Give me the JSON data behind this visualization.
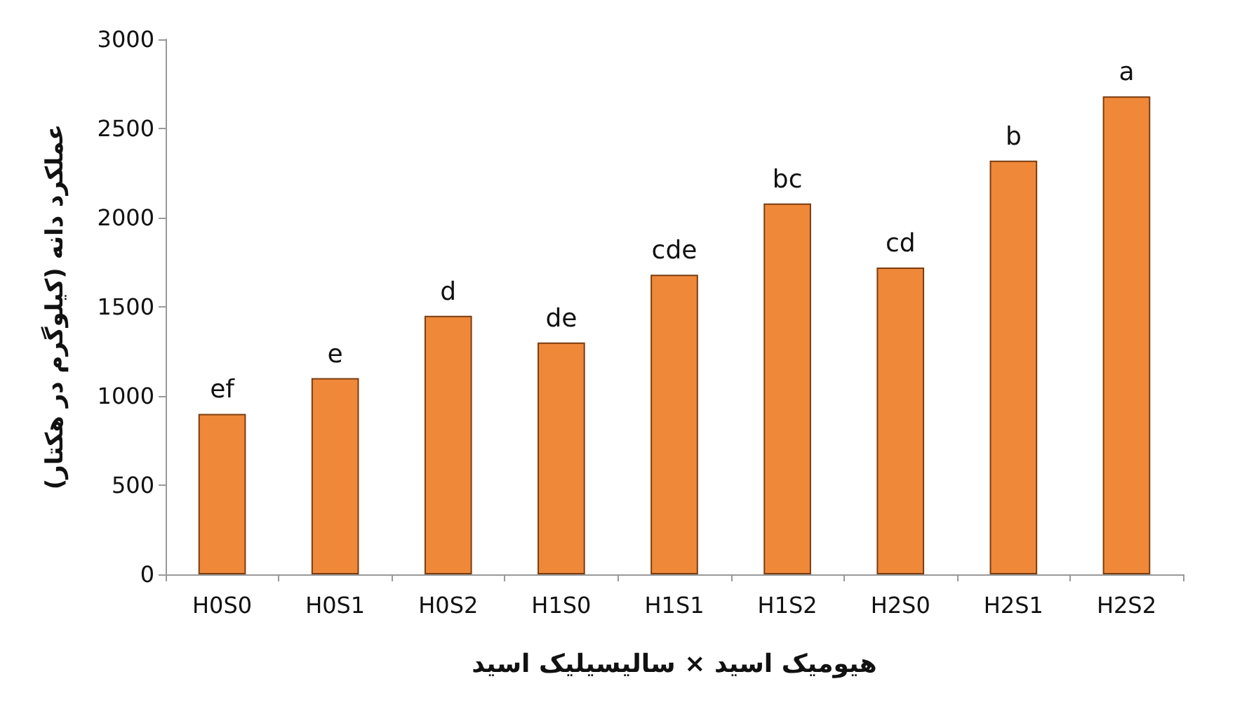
{
  "chart_data": {
    "type": "bar",
    "xlabel": "هیومیک اسید × سالیسیلیک اسید",
    "ylabel": "عملکرد دانه (کیلوگرم در هکتار)",
    "categories": [
      "H0S0",
      "H0S1",
      "H0S2",
      "H1S0",
      "H1S1",
      "H1S2",
      "H2S0",
      "H2S1",
      "H2S2"
    ],
    "values": [
      900,
      1100,
      1450,
      1300,
      1680,
      2080,
      1720,
      2320,
      2680
    ],
    "value_labels": [
      "ef",
      "e",
      "d",
      "de",
      "cde",
      "bc",
      "cd",
      "b",
      "a"
    ],
    "color": "#f0883a",
    "ylim": [
      0,
      3000
    ],
    "yticks": [
      0,
      500,
      1000,
      1500,
      2000,
      2500,
      3000
    ],
    "grid": false
  }
}
